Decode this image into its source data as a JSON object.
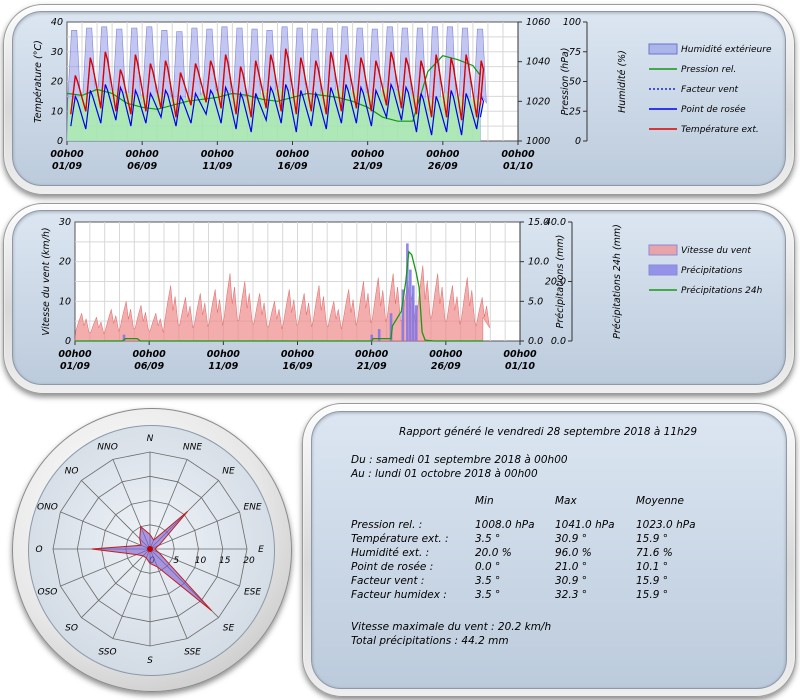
{
  "colors": {
    "humidity": "#8f97e6",
    "pressure": "#119911",
    "windchill": "#1f1fd8",
    "dewpoint": "#0000ee",
    "temperature": "#dd0000",
    "wind": "#f08a8a",
    "rain": "#7b73e8",
    "rain24": "#149a14",
    "humidity_band": "#a9f0a9",
    "rose": "#7a5bd0"
  },
  "chart_data": [
    {
      "type": "line",
      "name": "temperature",
      "x_tick_labels": [
        [
          "00h00",
          "01/09"
        ],
        [
          "00h00",
          "06/09"
        ],
        [
          "00h00",
          "11/09"
        ],
        [
          "00h00",
          "16/09"
        ],
        [
          "00h00",
          "21/09"
        ],
        [
          "00h00",
          "26/09"
        ],
        [
          "00h00",
          "01/10"
        ]
      ],
      "x_range_days": [
        0,
        30
      ],
      "axes": {
        "left": {
          "label": "Température (°C)",
          "range": [
            0,
            40
          ],
          "ticks": [
            "0",
            "10",
            "20",
            "30",
            "40"
          ]
        },
        "right1": {
          "label": "Pression (hPa)",
          "range": [
            1000,
            1060
          ],
          "ticks": [
            "1000",
            "1020",
            "1040",
            "1060"
          ]
        },
        "right2": {
          "label": "Humidité (%)",
          "range": [
            0,
            100
          ],
          "ticks": [
            "0",
            "25",
            "50",
            "75",
            "100"
          ]
        }
      },
      "legend": [
        "Humidité extérieure",
        "Pression rel.",
        "Facteur vent",
        "Point de rosée",
        "Température ext."
      ],
      "legend_position": "right",
      "grid": true,
      "series": {
        "temperature": {
          "min": [
            9,
            10,
            11,
            10,
            9,
            10,
            11,
            8,
            12,
            13,
            11,
            9,
            8,
            11,
            10,
            9,
            10,
            9,
            10,
            11,
            10,
            12,
            11,
            9,
            8,
            8,
            7,
            8,
            8
          ],
          "max": [
            22,
            28,
            30,
            24,
            29,
            26,
            27,
            23,
            26,
            27,
            29,
            25,
            27,
            29,
            31,
            28,
            27,
            30,
            29,
            28,
            27,
            30,
            28,
            27,
            29,
            28,
            29,
            27,
            14
          ]
        },
        "dewpoint": {
          "min": [
            5,
            4,
            6,
            7,
            5,
            6,
            8,
            5,
            6,
            9,
            6,
            4,
            3,
            7,
            6,
            3,
            5,
            4,
            6,
            6,
            5,
            8,
            7,
            3,
            2,
            3,
            2,
            4,
            4
          ],
          "max": [
            15,
            17,
            19,
            18,
            17,
            16,
            17,
            15,
            16,
            17,
            18,
            16,
            16,
            18,
            19,
            17,
            16,
            18,
            19,
            18,
            17,
            19,
            18,
            16,
            15,
            17,
            16,
            15,
            13
          ]
        },
        "pressure": [
          1024,
          1023,
          1026,
          1024,
          1019,
          1017,
          1016,
          1018,
          1020,
          1021,
          1022,
          1024,
          1023,
          1021,
          1020,
          1022,
          1024,
          1023,
          1022,
          1020,
          1017,
          1012,
          1010,
          1010,
          1035,
          1043,
          1041,
          1038,
          1033,
          1030
        ],
        "humidity": {
          "min": [
            35,
            38,
            40,
            38,
            35,
            42,
            40,
            33,
            37,
            44,
            40,
            36,
            33,
            40,
            38,
            35,
            37,
            36,
            39,
            42,
            38,
            44,
            40,
            30,
            25,
            30,
            28,
            32,
            40
          ],
          "max": [
            93,
            95,
            96,
            94,
            95,
            96,
            93,
            92,
            95,
            94,
            96,
            95,
            94,
            93,
            96,
            95,
            94,
            95,
            96,
            95,
            94,
            96,
            95,
            95,
            96,
            96,
            95,
            94,
            90
          ]
        }
      }
    },
    {
      "type": "area",
      "name": "wind-rain",
      "x_tick_labels": [
        [
          "00h00",
          "01/09"
        ],
        [
          "00h00",
          "06/09"
        ],
        [
          "00h00",
          "11/09"
        ],
        [
          "00h00",
          "16/09"
        ],
        [
          "00h00",
          "21/09"
        ],
        [
          "00h00",
          "26/09"
        ],
        [
          "00h00",
          "01/10"
        ]
      ],
      "x_range_days": [
        0,
        30
      ],
      "axes": {
        "left": {
          "label": "Vitesse du vent (km/h)",
          "range": [
            0,
            30
          ],
          "ticks": [
            "0",
            "10",
            "20",
            "30"
          ]
        },
        "right1": {
          "label": "Précipitations (mm)",
          "range": [
            0,
            15
          ],
          "ticks": [
            "0.0",
            "5.0",
            "10.0",
            "15.0"
          ]
        },
        "right2": {
          "label": "Précipitations 24h (mm)",
          "range": [
            0,
            40
          ],
          "ticks": [
            "0.0",
            "20.0",
            "40.0"
          ]
        }
      },
      "legend": [
        "Vitesse du vent",
        "Précipitations",
        "Précipitations 24h"
      ],
      "legend_position": "right",
      "grid": true,
      "series": {
        "wind_max": [
          7,
          6,
          8,
          10,
          9,
          7,
          14,
          11,
          12,
          13,
          17,
          15,
          12,
          10,
          13,
          12,
          14,
          10,
          13,
          15,
          16,
          17,
          15,
          19,
          17,
          14,
          16,
          11,
          11,
          9
        ],
        "rain_events": [
          [
            3.3,
            0.8
          ],
          [
            20.0,
            0.8
          ],
          [
            20.5,
            1.5
          ],
          [
            21.3,
            3.5
          ],
          [
            22.1,
            6.5
          ],
          [
            22.4,
            12.3
          ],
          [
            22.6,
            9.0
          ],
          [
            22.8,
            7.0
          ],
          [
            23.0,
            4.5
          ]
        ],
        "rain24": [
          [
            0,
            0
          ],
          [
            3.2,
            0
          ],
          [
            3.4,
            0.8
          ],
          [
            4.2,
            0.8
          ],
          [
            4.4,
            0
          ],
          [
            20.0,
            0
          ],
          [
            20.1,
            0.8
          ],
          [
            21.3,
            0.8
          ],
          [
            21.4,
            5.0
          ],
          [
            22.0,
            10.0
          ],
          [
            22.3,
            20.0
          ],
          [
            22.5,
            30.0
          ],
          [
            22.7,
            29.0
          ],
          [
            23.0,
            23.0
          ],
          [
            23.2,
            18.0
          ],
          [
            23.4,
            3.0
          ],
          [
            23.6,
            0.3
          ],
          [
            24.2,
            0
          ],
          [
            27.5,
            0
          ]
        ]
      }
    },
    {
      "type": "radar",
      "name": "wind-rose",
      "directions": [
        "N",
        "NNE",
        "NE",
        "ENE",
        "E",
        "ESE",
        "SE",
        "SSE",
        "S",
        "SSO",
        "SO",
        "OSO",
        "O",
        "ONO",
        "NO",
        "NNO"
      ],
      "ring_labels": [
        "0",
        "5",
        "10",
        "15",
        "20"
      ],
      "range": [
        0,
        20
      ],
      "values": [
        3,
        2,
        11,
        2,
        1,
        2,
        18,
        4,
        3,
        2,
        2,
        3,
        12,
        2,
        3,
        5
      ]
    }
  ],
  "report": {
    "title": "Rapport généré le vendredi 28 septembre 2018 à 11h29",
    "from": "Du : samedi 01 septembre 2018 à 00h00",
    "to": "Au : lundi 01 octobre 2018 à 00h00",
    "headers": [
      "",
      "Min",
      "Max",
      "Moyenne"
    ],
    "rows": [
      [
        "Pression rel. :",
        "1008.0 hPa",
        "1041.0 hPa",
        "1023.0 hPa"
      ],
      [
        "Température ext. :",
        "3.5 °",
        "30.9 °",
        "15.9 °"
      ],
      [
        "Humidité ext. :",
        "20.0 %",
        "96.0 %",
        "71.6 %"
      ],
      [
        "Point de rosée :",
        "0.0 °",
        "21.0 °",
        "10.1 °"
      ],
      [
        "Facteur vent :",
        "3.5 °",
        "30.9 °",
        "15.9 °"
      ],
      [
        "Facteur humidex :",
        "3.5 °",
        "32.3 °",
        "15.9 °"
      ]
    ],
    "max_wind": "Vitesse maximale du vent : 20.2 km/h",
    "total_rain": "Total précipitations : 44.2 mm"
  }
}
